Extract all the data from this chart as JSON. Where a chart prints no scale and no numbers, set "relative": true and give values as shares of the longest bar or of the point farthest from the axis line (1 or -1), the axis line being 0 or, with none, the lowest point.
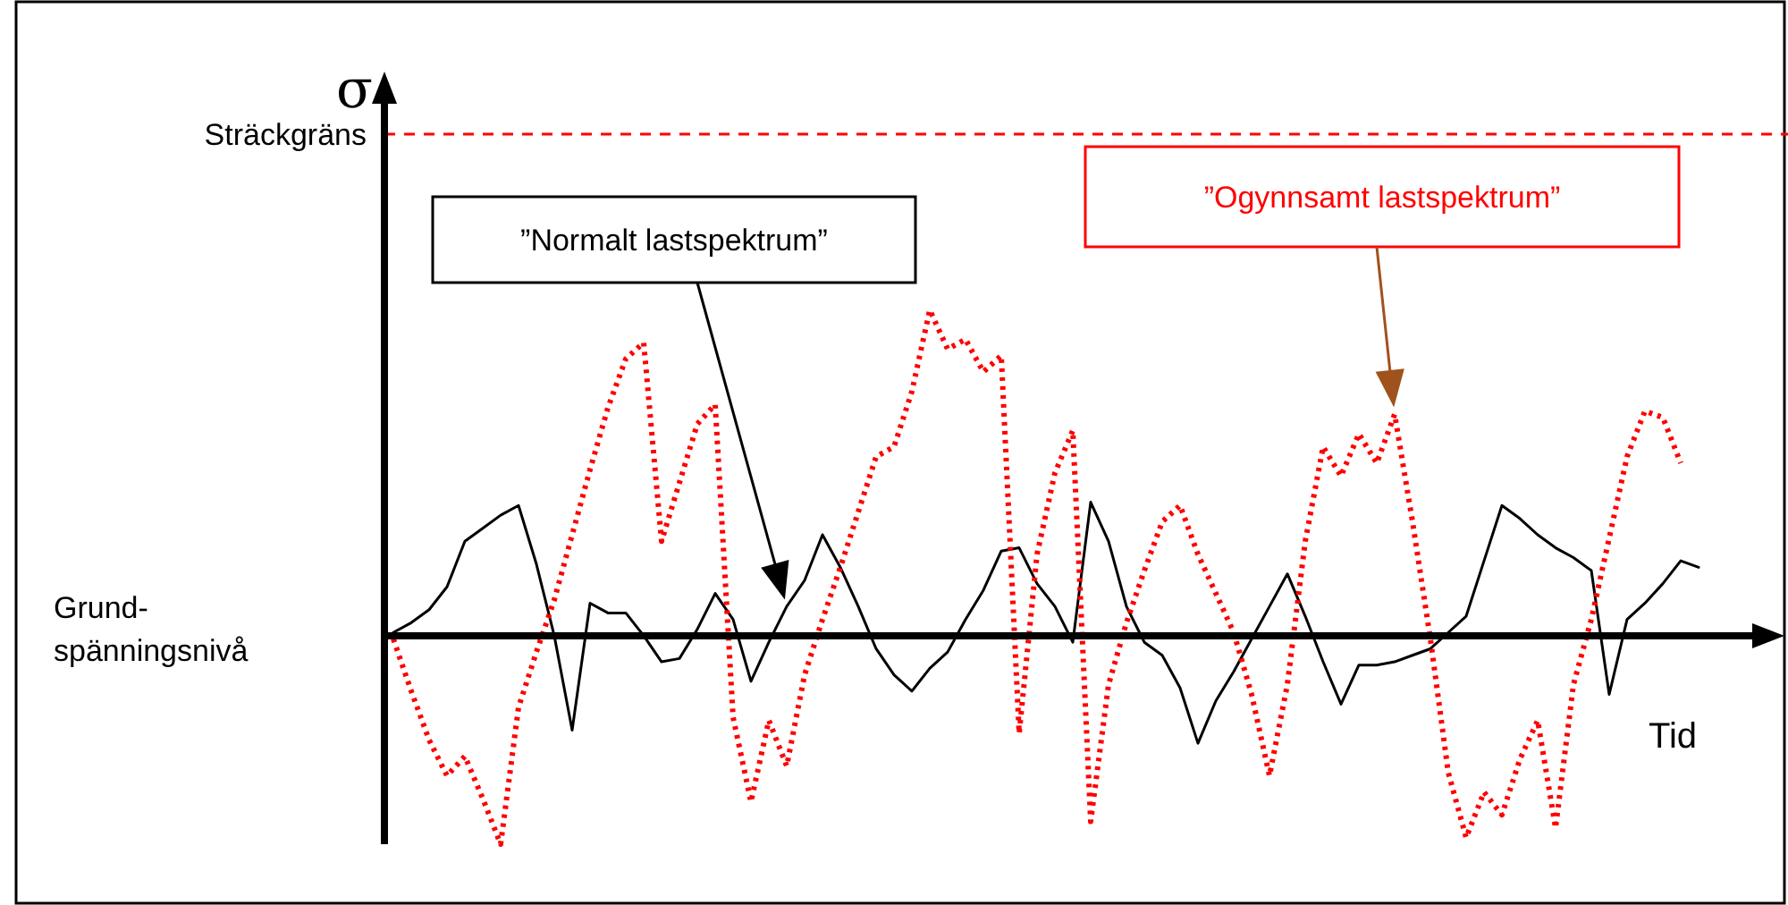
{
  "chart_data": {
    "type": "line",
    "relative": true,
    "ylabel": "σ",
    "xlabel": "Tid",
    "categories": [
      null,
      null,
      null,
      null,
      null,
      null,
      null,
      null,
      null,
      null,
      null,
      null,
      null,
      null,
      null,
      null,
      null,
      null,
      null,
      null,
      null,
      null,
      null,
      null,
      null,
      null,
      null,
      null,
      null,
      null,
      null,
      null,
      null,
      null,
      null,
      null,
      null,
      null,
      null,
      null,
      null,
      null,
      null,
      null,
      null,
      null,
      null,
      null,
      null,
      null,
      null,
      null,
      null,
      null,
      null,
      null,
      null,
      null,
      null,
      null,
      null,
      null,
      null,
      null,
      null,
      null,
      null,
      null,
      null,
      null,
      null,
      null,
      null,
      null
    ],
    "ref_lines": [
      {
        "axis": "y",
        "value": 1.54,
        "label": "Sträckgräns",
        "color": "#ff0000",
        "line_style": "dashed"
      }
    ],
    "annotations": [
      "Grund-\nspänningsnivå"
    ],
    "series": [
      {
        "name": "”Normalt lastspektrum”",
        "color": "#000000",
        "line_style": "solid",
        "values": [
          0.01,
          0.04,
          0.08,
          0.15,
          0.29,
          0.33,
          0.37,
          0.4,
          0.22,
          0.0,
          -0.29,
          0.1,
          0.07,
          0.07,
          0.0,
          -0.08,
          -0.07,
          0.02,
          0.13,
          0.05,
          -0.14,
          -0.02,
          0.09,
          0.17,
          0.31,
          0.21,
          0.09,
          -0.04,
          -0.12,
          -0.17,
          -0.1,
          -0.05,
          0.05,
          0.14,
          0.26,
          0.27,
          0.16,
          0.09,
          -0.02,
          0.41,
          0.29,
          0.09,
          -0.02,
          -0.06,
          -0.16,
          -0.33,
          -0.2,
          -0.11,
          -0.01,
          0.09,
          0.19,
          0.06,
          -0.08,
          -0.21,
          -0.09,
          -0.09,
          -0.08,
          -0.06,
          -0.04,
          0.01,
          0.06,
          0.23,
          0.4,
          0.36,
          0.31,
          0.27,
          0.24,
          0.2,
          -0.18,
          0.05,
          0.1,
          0.16,
          0.23,
          0.21
        ]
      },
      {
        "name": "”Ogynnsamt lastspektrum”",
        "color": "#ff0000",
        "line_style": "dotted",
        "values": [
          -0.01,
          -0.17,
          -0.32,
          -0.43,
          -0.37,
          -0.5,
          -0.64,
          -0.22,
          -0.05,
          0.11,
          0.31,
          0.51,
          0.7,
          0.85,
          0.9,
          0.29,
          0.47,
          0.65,
          0.71,
          -0.25,
          -0.51,
          -0.26,
          -0.4,
          -0.12,
          0.05,
          0.21,
          0.38,
          0.55,
          0.58,
          0.75,
          1,
          0.88,
          0.91,
          0.81,
          0.86,
          -0.3,
          0.25,
          0.5,
          0.63,
          -0.57,
          -0.15,
          0.04,
          0.2,
          0.35,
          0.4,
          0.25,
          0.13,
          0.01,
          -0.18,
          -0.43,
          -0.15,
          0.29,
          0.58,
          0.49,
          0.62,
          0.53,
          0.68,
          0.35,
          -0.01,
          -0.42,
          -0.62,
          -0.48,
          -0.55,
          -0.38,
          -0.26,
          -0.59,
          -0.15,
          0.05,
          0.3,
          0.55,
          0.69,
          0.67,
          0.53,
          null
        ]
      }
    ]
  }
}
